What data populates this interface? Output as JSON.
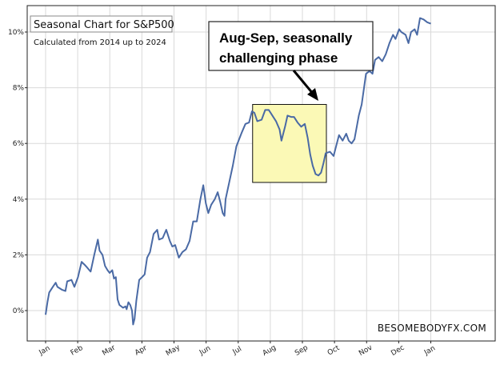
{
  "chart_data": {
    "type": "line",
    "title": "Seasonal Chart for S&P500",
    "subtitle": "Calculated from 2014 up to 2024",
    "xlabel": "",
    "ylabel": "",
    "x_ticks": [
      "Jan",
      "Feb",
      "Mar",
      "Apr",
      "May",
      "Jun",
      "Jul",
      "Aug",
      "Sep",
      "Oct",
      "Nov",
      "Dec",
      "Jan"
    ],
    "y_ticks": [
      "0%",
      "2%",
      "4%",
      "6%",
      "8%",
      "10%"
    ],
    "ylim": [
      -1.0,
      10.8
    ],
    "grid": true,
    "series": [
      {
        "color": "#4a6aa5",
        "points": [
          [
            0,
            -0.15
          ],
          [
            0.05,
            0.3
          ],
          [
            0.1,
            0.65
          ],
          [
            0.2,
            0.85
          ],
          [
            0.28,
            1.0
          ],
          [
            0.33,
            0.85
          ],
          [
            0.45,
            0.75
          ],
          [
            0.55,
            0.7
          ],
          [
            0.6,
            1.05
          ],
          [
            0.72,
            1.1
          ],
          [
            0.8,
            0.85
          ],
          [
            0.9,
            1.2
          ],
          [
            1.0,
            1.75
          ],
          [
            1.08,
            1.65
          ],
          [
            1.15,
            1.55
          ],
          [
            1.25,
            1.4
          ],
          [
            1.35,
            2.0
          ],
          [
            1.45,
            2.55
          ],
          [
            1.5,
            2.15
          ],
          [
            1.58,
            2.0
          ],
          [
            1.65,
            1.6
          ],
          [
            1.72,
            1.45
          ],
          [
            1.78,
            1.35
          ],
          [
            1.85,
            1.45
          ],
          [
            1.9,
            1.15
          ],
          [
            1.95,
            1.2
          ],
          [
            2.0,
            0.4
          ],
          [
            2.05,
            0.2
          ],
          [
            2.15,
            0.1
          ],
          [
            2.22,
            0.15
          ],
          [
            2.25,
            0.05
          ],
          [
            2.3,
            0.3
          ],
          [
            2.35,
            0.2
          ],
          [
            2.4,
            0.0
          ],
          [
            2.43,
            -0.5
          ],
          [
            2.47,
            -0.3
          ],
          [
            2.52,
            0.35
          ],
          [
            2.6,
            1.1
          ],
          [
            2.68,
            1.2
          ],
          [
            2.75,
            1.3
          ],
          [
            2.82,
            1.9
          ],
          [
            2.9,
            2.1
          ],
          [
            3.0,
            2.75
          ],
          [
            3.1,
            2.9
          ],
          [
            3.15,
            2.55
          ],
          [
            3.25,
            2.6
          ],
          [
            3.35,
            2.9
          ],
          [
            3.45,
            2.5
          ],
          [
            3.52,
            2.3
          ],
          [
            3.6,
            2.35
          ],
          [
            3.7,
            1.9
          ],
          [
            3.8,
            2.1
          ],
          [
            3.9,
            2.2
          ],
          [
            4.0,
            2.5
          ],
          [
            4.1,
            3.2
          ],
          [
            4.2,
            3.2
          ],
          [
            4.3,
            4.0
          ],
          [
            4.38,
            4.5
          ],
          [
            4.45,
            3.85
          ],
          [
            4.52,
            3.5
          ],
          [
            4.6,
            3.8
          ],
          [
            4.7,
            4.0
          ],
          [
            4.78,
            4.25
          ],
          [
            4.85,
            3.9
          ],
          [
            4.92,
            3.5
          ],
          [
            4.97,
            3.4
          ],
          [
            5.0,
            4.0
          ],
          [
            5.1,
            4.6
          ],
          [
            5.2,
            5.2
          ],
          [
            5.3,
            5.9
          ],
          [
            5.45,
            6.4
          ],
          [
            5.55,
            6.7
          ],
          [
            5.65,
            6.75
          ],
          [
            5.73,
            7.15
          ],
          [
            5.8,
            7.1
          ],
          [
            5.88,
            6.8
          ],
          [
            6.0,
            6.85
          ],
          [
            6.1,
            7.2
          ],
          [
            6.2,
            7.2
          ],
          [
            6.3,
            7.0
          ],
          [
            6.4,
            6.8
          ],
          [
            6.5,
            6.5
          ],
          [
            6.55,
            6.1
          ],
          [
            6.65,
            6.6
          ],
          [
            6.72,
            7.0
          ],
          [
            6.82,
            6.95
          ],
          [
            6.9,
            6.95
          ],
          [
            7.0,
            6.75
          ],
          [
            7.1,
            6.6
          ],
          [
            7.2,
            6.7
          ],
          [
            7.28,
            6.2
          ],
          [
            7.35,
            5.6
          ],
          [
            7.42,
            5.2
          ],
          [
            7.5,
            4.9
          ],
          [
            7.58,
            4.85
          ],
          [
            7.65,
            4.95
          ],
          [
            7.72,
            5.3
          ],
          [
            7.78,
            5.65
          ],
          [
            7.9,
            5.7
          ],
          [
            8.0,
            5.55
          ],
          [
            8.08,
            5.95
          ],
          [
            8.15,
            6.3
          ],
          [
            8.25,
            6.1
          ],
          [
            8.35,
            6.35
          ],
          [
            8.42,
            6.1
          ],
          [
            8.5,
            6.0
          ],
          [
            8.58,
            6.15
          ],
          [
            8.7,
            7.0
          ],
          [
            8.78,
            7.4
          ],
          [
            8.9,
            8.5
          ],
          [
            9.0,
            8.6
          ],
          [
            9.08,
            8.5
          ],
          [
            9.15,
            9.0
          ],
          [
            9.25,
            9.1
          ],
          [
            9.35,
            8.95
          ],
          [
            9.45,
            9.2
          ],
          [
            9.55,
            9.6
          ],
          [
            9.65,
            9.9
          ],
          [
            9.72,
            9.75
          ],
          [
            9.82,
            10.1
          ],
          [
            9.88,
            10.0
          ],
          [
            10.0,
            9.9
          ],
          [
            10.08,
            9.6
          ],
          [
            10.15,
            10.0
          ],
          [
            10.25,
            10.1
          ],
          [
            10.32,
            9.9
          ],
          [
            10.4,
            10.5
          ],
          [
            10.5,
            10.45
          ],
          [
            10.6,
            10.35
          ],
          [
            10.7,
            10.3
          ]
        ]
      }
    ],
    "callout": {
      "text_lines": [
        "Aug-Sep, seasonally",
        "challenging phase"
      ],
      "highlight_x_range": [
        5.75,
        7.8
      ],
      "highlight_y_range": [
        4.6,
        7.4
      ],
      "highlight_color": "#fbf9b6"
    },
    "watermark": "BESOMEBODYFX.COM"
  }
}
